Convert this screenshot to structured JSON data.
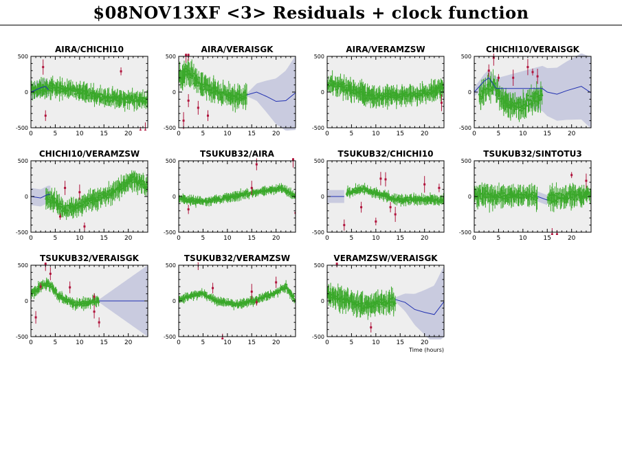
{
  "page": {
    "title": "$08NOV13XF <3> Residuals + clock function",
    "xlabel": "Time (hours)"
  },
  "colors": {
    "background": "#ffffff",
    "panel_fill": "#eeeeee",
    "band_fill": "#c9cbdf",
    "clock_line": "#1f2fb0",
    "residual_good": "#3aa82a",
    "residual_flagged": "#b0143c"
  },
  "chart_data": [
    {
      "type": "scatter",
      "title": "AIRA/CHICHI10",
      "xlim": [
        0,
        24
      ],
      "ylim": [
        -500,
        500
      ],
      "xticks": [
        0,
        5,
        10,
        15,
        20
      ],
      "yticks": [
        500,
        0,
        -500
      ],
      "data_xrange": [
        0,
        24
      ],
      "trend": [
        [
          0,
          30
        ],
        [
          4,
          60
        ],
        [
          8,
          40
        ],
        [
          12,
          -30
        ],
        [
          16,
          -80
        ],
        [
          20,
          -100
        ],
        [
          24,
          -110
        ]
      ],
      "scatter_amp": 110,
      "outliers": [
        [
          2.5,
          350
        ],
        [
          3,
          -330
        ],
        [
          18.5,
          290
        ],
        [
          22.5,
          -540
        ],
        [
          23.5,
          -540
        ]
      ],
      "clock": [
        [
          0,
          0
        ],
        [
          2,
          60
        ],
        [
          3,
          80
        ],
        [
          3.6,
          30
        ]
      ],
      "band": {
        "x0": 0,
        "x1": 3.6,
        "half_width": 110
      }
    },
    {
      "type": "scatter",
      "title": "AIRA/VERAISGK",
      "xlim": [
        0,
        24
      ],
      "ylim": [
        -500,
        500
      ],
      "xticks": [
        0,
        5,
        10,
        15,
        20
      ],
      "yticks": [
        500,
        0,
        -500
      ],
      "data_xrange": [
        0,
        14
      ],
      "trend": [
        [
          0,
          200
        ],
        [
          2,
          280
        ],
        [
          4,
          150
        ],
        [
          7,
          30
        ],
        [
          10,
          -60
        ],
        [
          14,
          -60
        ]
      ],
      "scatter_amp": 140,
      "outliers": [
        [
          1.5,
          520
        ],
        [
          2,
          520
        ],
        [
          1,
          -400
        ],
        [
          2,
          -120
        ],
        [
          4,
          -220
        ],
        [
          6,
          -330
        ]
      ],
      "clock": [
        [
          14,
          -40
        ],
        [
          16,
          0
        ],
        [
          18,
          -60
        ],
        [
          20,
          -130
        ],
        [
          22,
          -120
        ],
        [
          24,
          -10
        ]
      ],
      "band": {
        "x0": 14,
        "x1": 24,
        "grow": [
          20,
          520
        ]
      }
    },
    {
      "type": "scatter",
      "title": "AIRA/VERAMZSW",
      "xlim": [
        0,
        24
      ],
      "ylim": [
        -500,
        500
      ],
      "xticks": [
        0,
        5,
        10,
        15,
        20
      ],
      "yticks": [
        500,
        0,
        -500
      ],
      "data_xrange": [
        0,
        24
      ],
      "trend": [
        [
          0,
          120
        ],
        [
          3,
          80
        ],
        [
          6,
          0
        ],
        [
          10,
          -80
        ],
        [
          14,
          -50
        ],
        [
          18,
          -40
        ],
        [
          24,
          60
        ]
      ],
      "scatter_amp": 120,
      "outliers": [
        [
          23.5,
          -150
        ]
      ],
      "clock": [],
      "band": null
    },
    {
      "type": "scatter",
      "title": "CHICHI10/VERAISGK",
      "xlim": [
        0,
        24
      ],
      "ylim": [
        -500,
        500
      ],
      "xticks": [
        0,
        5,
        10,
        15,
        20
      ],
      "yticks": [
        500,
        0,
        -500
      ],
      "data_xrange": [
        1,
        14
      ],
      "trend": [
        [
          1,
          -50
        ],
        [
          4,
          100
        ],
        [
          6,
          -150
        ],
        [
          9,
          -200
        ],
        [
          11,
          -150
        ],
        [
          14,
          -50
        ]
      ],
      "scatter_amp": 150,
      "outliers": [
        [
          3,
          300
        ],
        [
          4,
          480
        ],
        [
          5,
          200
        ],
        [
          8,
          200
        ],
        [
          11,
          350
        ],
        [
          12,
          280
        ],
        [
          13,
          220
        ]
      ],
      "clock": [
        [
          0,
          0
        ],
        [
          2,
          150
        ],
        [
          3,
          200
        ],
        [
          4,
          100
        ],
        [
          4.5,
          50
        ],
        [
          14,
          50
        ],
        [
          15,
          0
        ],
        [
          17,
          -30
        ],
        [
          19,
          20
        ],
        [
          22,
          80
        ],
        [
          24,
          -10
        ]
      ],
      "band": {
        "x0": 0,
        "x1": 24,
        "grow": [
          60,
          500
        ]
      }
    },
    {
      "type": "scatter",
      "title": "CHICHI10/VERAMZSW",
      "xlim": [
        0,
        24
      ],
      "ylim": [
        -500,
        500
      ],
      "xticks": [
        0,
        5,
        10,
        15,
        20
      ],
      "yticks": [
        500,
        0,
        -500
      ],
      "data_xrange": [
        3,
        24
      ],
      "trend": [
        [
          3,
          0
        ],
        [
          5,
          -80
        ],
        [
          7,
          -180
        ],
        [
          10,
          -120
        ],
        [
          14,
          -20
        ],
        [
          18,
          100
        ],
        [
          21,
          250
        ],
        [
          24,
          130
        ]
      ],
      "scatter_amp": 120,
      "outliers": [
        [
          6,
          -280
        ],
        [
          7,
          120
        ],
        [
          10,
          60
        ],
        [
          11,
          -420
        ]
      ],
      "clock": [
        [
          0,
          0
        ],
        [
          2,
          -20
        ],
        [
          3.5,
          30
        ],
        [
          4,
          30
        ]
      ],
      "band": {
        "x0": 0,
        "x1": 4,
        "half_width": 120
      }
    },
    {
      "type": "scatter",
      "title": "TSUKUB32/AIRA",
      "xlim": [
        0,
        24
      ],
      "ylim": [
        -500,
        500
      ],
      "xticks": [
        0,
        5,
        10,
        15,
        20
      ],
      "yticks": [
        500,
        0,
        -500
      ],
      "data_xrange": [
        0,
        24
      ],
      "trend": [
        [
          0,
          -20
        ],
        [
          3,
          -60
        ],
        [
          6,
          -60
        ],
        [
          10,
          -20
        ],
        [
          14,
          40
        ],
        [
          18,
          80
        ],
        [
          21,
          120
        ],
        [
          24,
          0
        ]
      ],
      "scatter_amp": 55,
      "outliers": [
        [
          2,
          -180
        ],
        [
          15,
          120
        ],
        [
          16,
          450
        ],
        [
          23.5,
          520
        ],
        [
          24,
          -230
        ]
      ],
      "clock": [],
      "band": null
    },
    {
      "type": "scatter",
      "title": "TSUKUB32/CHICHI10",
      "xlim": [
        0,
        24
      ],
      "ylim": [
        -500,
        500
      ],
      "xticks": [
        0,
        5,
        10,
        15,
        20
      ],
      "yticks": [
        500,
        0,
        -500
      ],
      "data_xrange": [
        4,
        24
      ],
      "trend": [
        [
          4,
          60
        ],
        [
          7,
          100
        ],
        [
          10,
          50
        ],
        [
          14,
          -40
        ],
        [
          18,
          -40
        ],
        [
          24,
          -60
        ]
      ],
      "scatter_amp": 65,
      "outliers": [
        [
          3.5,
          -400
        ],
        [
          7,
          -150
        ],
        [
          10,
          -350
        ],
        [
          11,
          250
        ],
        [
          12,
          240
        ],
        [
          13,
          -150
        ],
        [
          14,
          -250
        ],
        [
          20,
          170
        ],
        [
          23,
          120
        ]
      ],
      "clock": [
        [
          0,
          0
        ],
        [
          3.5,
          0
        ]
      ],
      "band": {
        "x0": 0,
        "x1": 3.5,
        "half_width": 90
      }
    },
    {
      "type": "scatter",
      "title": "TSUKUB32/SINTOTU3",
      "xlim": [
        0,
        24
      ],
      "ylim": [
        -500,
        500
      ],
      "xticks": [
        0,
        5,
        10,
        15,
        20
      ],
      "yticks": [
        500,
        0,
        -500
      ],
      "data_xrange": [
        0,
        24
      ],
      "gap": [
        13,
        15
      ],
      "trend": [
        [
          0,
          20
        ],
        [
          6,
          10
        ],
        [
          12,
          0
        ],
        [
          16,
          -20
        ],
        [
          20,
          20
        ],
        [
          24,
          10
        ]
      ],
      "scatter_amp": 130,
      "outliers": [
        [
          16,
          -530
        ],
        [
          17,
          -530
        ],
        [
          20,
          300
        ],
        [
          23,
          220
        ]
      ],
      "clock": [
        [
          13,
          0
        ],
        [
          15,
          -50
        ]
      ],
      "band": {
        "x0": 13,
        "x1": 15,
        "half_width": 70
      }
    },
    {
      "type": "scatter",
      "title": "TSUKUB32/VERAISGK",
      "xlim": [
        0,
        24
      ],
      "ylim": [
        -500,
        500
      ],
      "xticks": [
        0,
        5,
        10,
        15,
        20
      ],
      "yticks": [
        500,
        0,
        -500
      ],
      "data_xrange": [
        0,
        14
      ],
      "trend": [
        [
          0,
          100
        ],
        [
          2,
          200
        ],
        [
          3.5,
          250
        ],
        [
          6,
          60
        ],
        [
          9,
          -50
        ],
        [
          12,
          -20
        ],
        [
          14,
          0
        ]
      ],
      "scatter_amp": 65,
      "outliers": [
        [
          1,
          -230
        ],
        [
          2,
          200
        ],
        [
          3,
          520
        ],
        [
          4,
          380
        ],
        [
          8,
          190
        ],
        [
          13,
          -150
        ],
        [
          14,
          -300
        ],
        [
          13,
          60
        ]
      ],
      "clock": [
        [
          14,
          0
        ],
        [
          24,
          0
        ]
      ],
      "band": {
        "x0": 14,
        "x1": 24,
        "grow": [
          20,
          500
        ]
      }
    },
    {
      "type": "scatter",
      "title": "TSUKUB32/VERAMZSW",
      "xlim": [
        0,
        24
      ],
      "ylim": [
        -500,
        500
      ],
      "xticks": [
        0,
        5,
        10,
        15,
        20
      ],
      "yticks": [
        500,
        0,
        -500
      ],
      "data_xrange": [
        0,
        24
      ],
      "trend": [
        [
          0,
          20
        ],
        [
          3,
          80
        ],
        [
          5,
          100
        ],
        [
          8,
          0
        ],
        [
          12,
          -50
        ],
        [
          16,
          10
        ],
        [
          20,
          120
        ],
        [
          22,
          200
        ],
        [
          24,
          0
        ]
      ],
      "scatter_amp": 55,
      "outliers": [
        [
          4,
          550
        ],
        [
          7,
          180
        ],
        [
          9,
          -530
        ],
        [
          15,
          130
        ],
        [
          16,
          -20
        ],
        [
          20,
          260
        ]
      ],
      "clock": [],
      "band": null
    },
    {
      "type": "scatter",
      "title": "VERAMZSW/VERAISGK",
      "xlim": [
        0,
        24
      ],
      "ylim": [
        -500,
        500
      ],
      "xticks": [
        0,
        5,
        10,
        15,
        20
      ],
      "yticks": [
        500,
        0,
        -500
      ],
      "data_xrange": [
        0,
        14
      ],
      "trend": [
        [
          0,
          80
        ],
        [
          4,
          20
        ],
        [
          8,
          -60
        ],
        [
          11,
          -20
        ],
        [
          14,
          -20
        ]
      ],
      "scatter_amp": 140,
      "outliers": [
        [
          2,
          520
        ],
        [
          9,
          -370
        ]
      ],
      "clock": [
        [
          14,
          20
        ],
        [
          16,
          -20
        ],
        [
          18,
          -120
        ],
        [
          20,
          -160
        ],
        [
          22,
          -190
        ],
        [
          24,
          -10
        ]
      ],
      "band": {
        "x0": 14,
        "x1": 24,
        "grow": [
          30,
          500
        ]
      }
    }
  ]
}
